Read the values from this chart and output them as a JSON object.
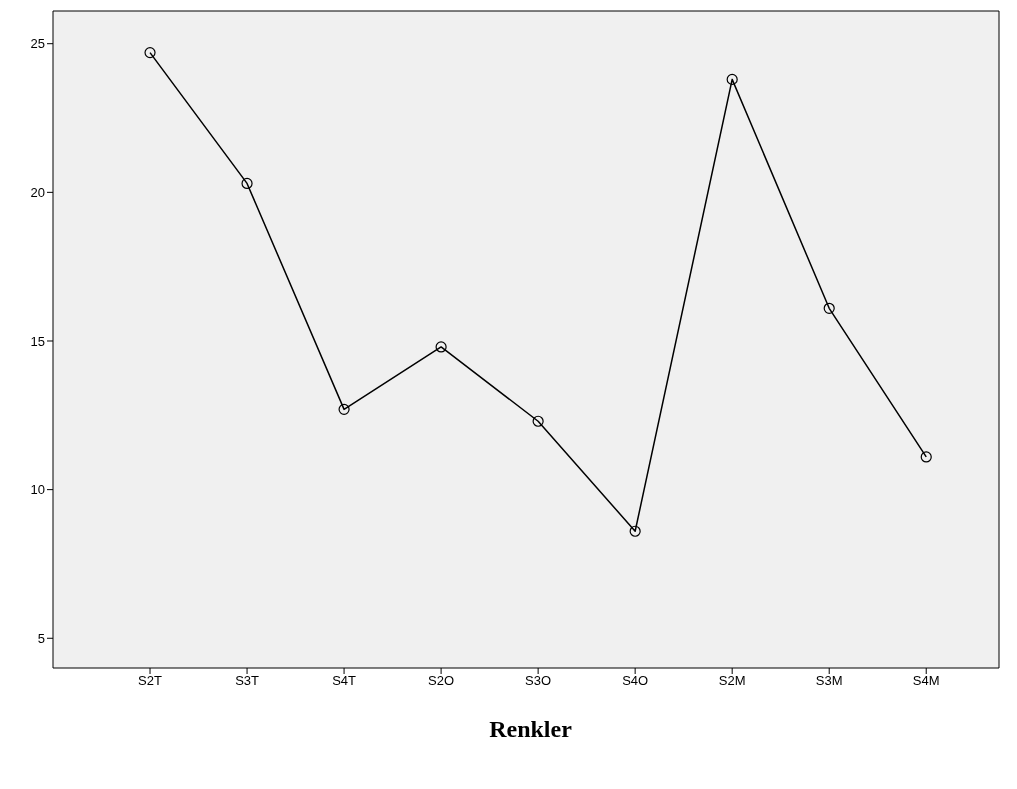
{
  "chart_data": {
    "type": "line",
    "xlabel": "Renkler",
    "categories": [
      "S2T",
      "S3T",
      "S4T",
      "S2O",
      "S3O",
      "S4O",
      "S2M",
      "S3M",
      "S4M"
    ],
    "series": [
      {
        "color": "#000000",
        "values": [
          24.7,
          20.3,
          12.7,
          14.8,
          12.3,
          8.6,
          23.8,
          16.1,
          11.1
        ]
      }
    ],
    "ylim": [
      4,
      26.1
    ],
    "yticks": [
      5,
      10,
      15,
      20,
      25
    ],
    "marker": "circle",
    "line_style": "solid"
  }
}
